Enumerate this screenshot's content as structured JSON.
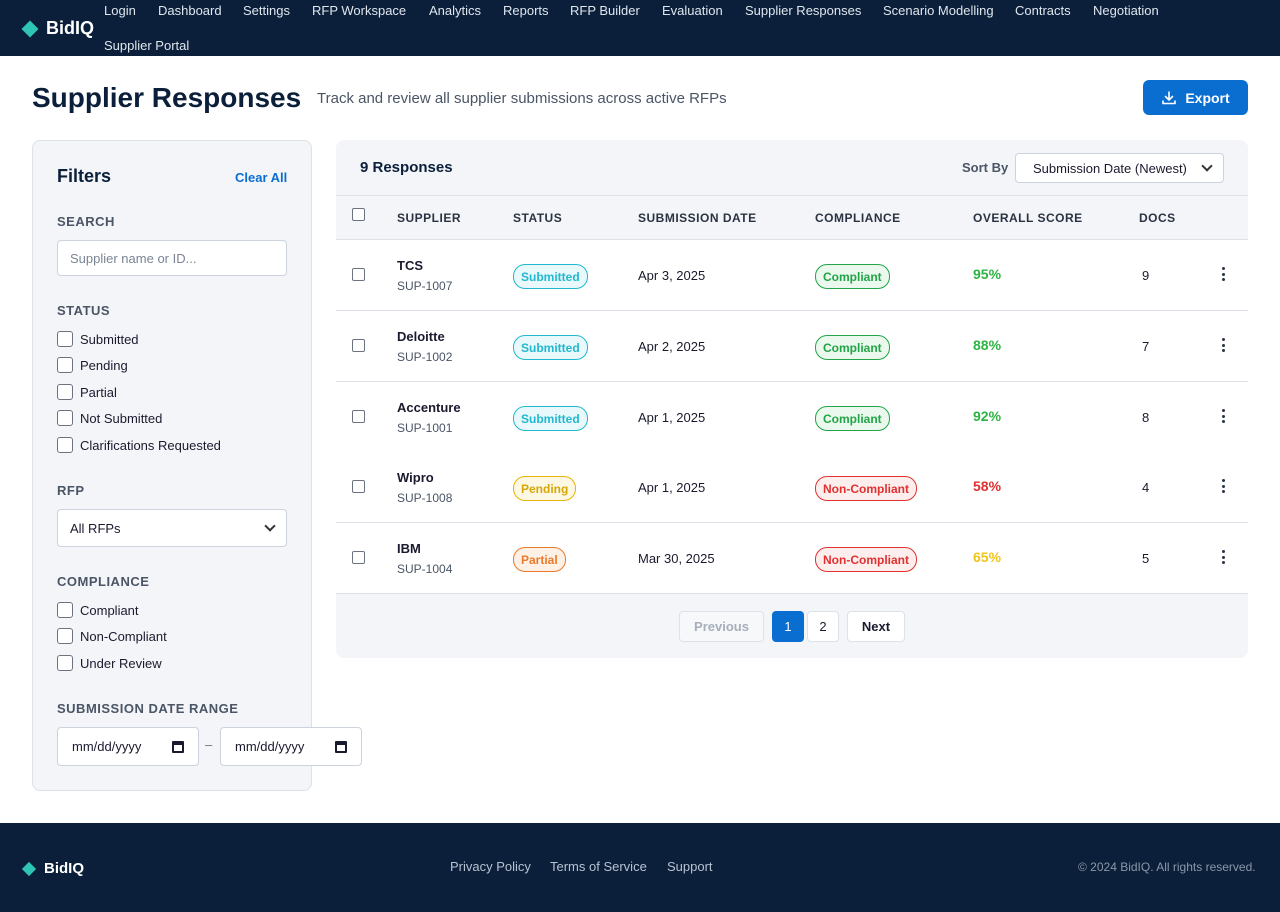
{
  "app": {
    "brand": "BidIQ"
  },
  "nav": {
    "items": [
      "Login",
      "Dashboard",
      "Settings",
      "RFP Workspace",
      "Analytics",
      "Reports",
      "RFP Builder",
      "Evaluation",
      "Supplier Responses",
      "Scenario Modelling",
      "Contracts",
      "Negotiation",
      "Supplier Portal"
    ]
  },
  "page": {
    "title": "Supplier Responses",
    "subtitle": "Track and review all supplier submissions across active RFPs",
    "export_label": "Export"
  },
  "filters": {
    "title": "Filters",
    "clear_all": "Clear All",
    "search_label": "SEARCH",
    "search_placeholder": "Supplier name or ID...",
    "status_label": "STATUS",
    "status_options": [
      "Submitted",
      "Pending",
      "Partial",
      "Not Submitted",
      "Clarifications Requested"
    ],
    "rfp_label": "RFP",
    "rfp_value": "All RFPs",
    "compliance_label": "COMPLIANCE",
    "compliance_options": [
      "Compliant",
      "Non-Compliant",
      "Under Review"
    ],
    "date_range_label": "SUBMISSION DATE RANGE",
    "date_from": "mm/dd/yyyy",
    "date_separator": "–",
    "date_to": "mm/dd/yyyy"
  },
  "results": {
    "count_label": "9 Responses",
    "sort_label": "Sort By",
    "sort_value": "Submission Date (Newest)",
    "columns": [
      "SUPPLIER",
      "STATUS",
      "SUBMISSION DATE",
      "COMPLIANCE",
      "OVERALL SCORE",
      "DOCS"
    ],
    "rows": [
      {
        "name": "TCS",
        "id": "SUP-1007",
        "status": "Submitted",
        "date": "Apr 3, 2025",
        "compliance": "Compliant",
        "score": "95%",
        "docs": "9"
      },
      {
        "name": "Deloitte",
        "id": "SUP-1002",
        "status": "Submitted",
        "date": "Apr 2, 2025",
        "compliance": "Compliant",
        "score": "88%",
        "docs": "7"
      },
      {
        "name": "Accenture",
        "id": "SUP-1001",
        "status": "Submitted",
        "date": "Apr 1, 2025",
        "compliance": "Compliant",
        "score": "92%",
        "docs": "8"
      },
      {
        "name": "Wipro",
        "id": "SUP-1008",
        "status": "Pending",
        "date": "Apr 1, 2025",
        "compliance": "Non-Compliant",
        "score": "58%",
        "docs": "4"
      },
      {
        "name": "IBM",
        "id": "SUP-1004",
        "status": "Partial",
        "date": "Mar 30, 2025",
        "compliance": "Non-Compliant",
        "score": "65%",
        "docs": "5"
      }
    ]
  },
  "pagination": {
    "previous": "Previous",
    "pages": [
      "1",
      "2"
    ],
    "next": "Next"
  },
  "footer": {
    "brand": "BidIQ",
    "links": [
      "Privacy Policy",
      "Terms of Service",
      "Support"
    ],
    "copyright": "© 2024 BidIQ. All rights reserved."
  },
  "colors": {
    "header_bg": "#0b1f3a",
    "accent": "#0a6ed1",
    "brand_diamond": "#2ec4b6",
    "submitted": "#22b8cf",
    "pending": "#eab308",
    "partial": "#ea7a2a",
    "compliant": "#22a447",
    "non_compliant": "#e03131",
    "score_high": "#2fb344",
    "score_low": "#e03131",
    "score_mid": "#f0c419"
  }
}
